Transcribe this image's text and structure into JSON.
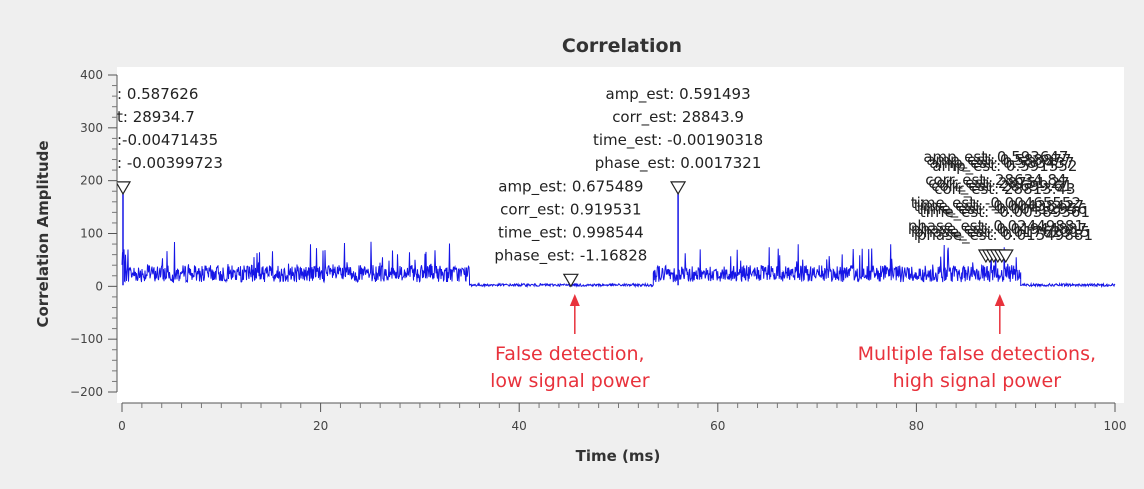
{
  "chart_data": {
    "type": "line",
    "title": "Correlation",
    "xlabel": "Time (ms)",
    "ylabel": "Correlation Amplitude",
    "xlim": [
      0,
      100
    ],
    "ylim": [
      -200,
      400
    ],
    "xticks": [
      "0",
      "20",
      "40",
      "60",
      "80",
      "100"
    ],
    "yticks": [
      "400",
      "300",
      "200",
      "100",
      "0",
      "−100",
      "−200"
    ],
    "grid": false,
    "series_color": "#1515e6",
    "marker_color": "#222222",
    "annotation_color": "#e8323c",
    "series": [
      {
        "segments": [
          {
            "x_start": 0.0,
            "x_end": 0.25,
            "level": 50,
            "min": 30,
            "max": 70
          },
          {
            "x_start": 0.25,
            "x_end": 35.0,
            "level": 25,
            "min": 8,
            "max": 85
          },
          {
            "x_start": 35.0,
            "x_end": 53.5,
            "level": 2,
            "min": 0,
            "max": 5
          },
          {
            "x_start": 53.5,
            "x_end": 90.5,
            "level": 25,
            "min": 8,
            "max": 80
          },
          {
            "x_start": 90.5,
            "x_end": 100.0,
            "level": 2,
            "min": 0,
            "max": 5
          }
        ]
      }
    ],
    "peaks": [
      {
        "x": 0.1,
        "y": 175
      },
      {
        "x": 56.0,
        "y": 175
      }
    ],
    "markers": [
      {
        "x": 0.1,
        "y": 175,
        "label_anchor": "end-clipped",
        "lines": [
          ": 0.587626",
          "t: 28934.7",
          ":-0.00471435",
          ": -0.00399723"
        ]
      },
      {
        "x": 56.0,
        "y": 175,
        "label_anchor": "middle",
        "lines": [
          "amp_est: 0.591493",
          "corr_est: 28843.9",
          "time_est: -0.00190318",
          "phase_est: 0.0017321"
        ]
      },
      {
        "x": 45.2,
        "y": 0,
        "label_anchor": "middle",
        "lines": [
          "amp_est: 0.675489",
          "corr_est: 0.919531",
          "time_est: 0.998544",
          "phase_est: -1.16828"
        ]
      }
    ],
    "cluster_markers": {
      "x": [
        87.0,
        87.4,
        87.8,
        88.2,
        88.6,
        89.0
      ],
      "y": 65,
      "labels": [
        {
          "lines": [
            "amp_est: 0.593647",
            "corr_est: 28634.84",
            "time_est: -0.00465552",
            "phase_est: 0.02449881"
          ]
        },
        {
          "lines": [
            "amp_est: 0.588877",
            "corr_est: 28751.27",
            "time_est: -0.00438427",
            "phase_est: 0.01944887"
          ]
        },
        {
          "lines": [
            "amp_est: 0.583437",
            "corr_est: 28699.61",
            "time_est: -0.00412956",
            "phase_est: 0.01762315"
          ]
        },
        {
          "lines": [
            "amp_est: 0.591552",
            "corr_est: 28813.43",
            "time_est: -0.00389361",
            "phase_est: 0.01549881"
          ]
        }
      ]
    },
    "annotations": [
      {
        "target_x": 45.6,
        "lines": [
          "False detection,",
          "low signal power"
        ]
      },
      {
        "target_x": 88.4,
        "lines": [
          "Multiple false detections,",
          "high signal power"
        ]
      }
    ]
  }
}
